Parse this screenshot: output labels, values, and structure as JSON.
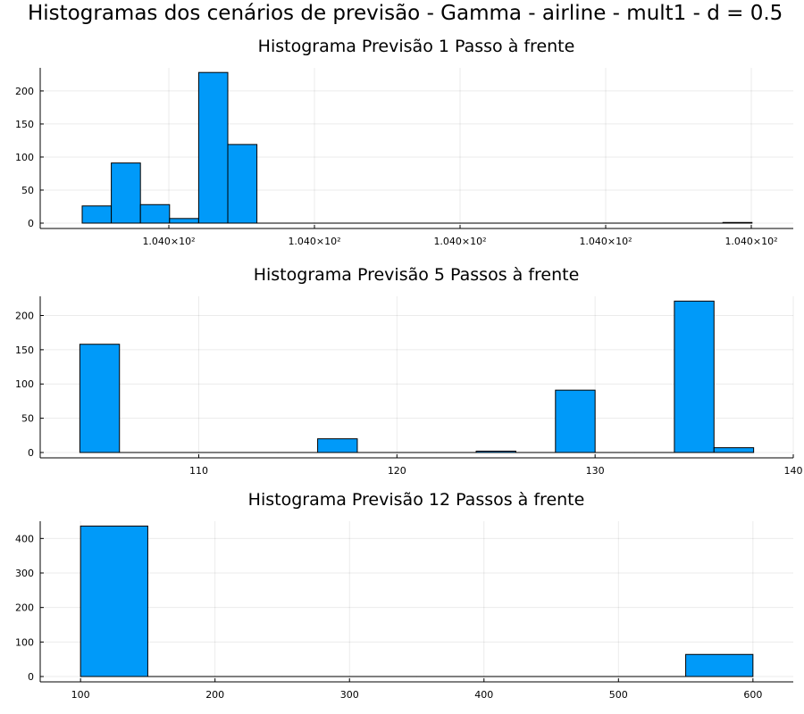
{
  "figure_title": "Histogramas dos cenários de previsão - Gamma - airline - mult1 - d = 0.5",
  "colors": {
    "bar_fill": "#009af9",
    "bar_stroke": "#000000",
    "background": "#ffffff"
  },
  "chart_data": [
    {
      "type": "bar",
      "title": "Histograma Previsão 1 Passo à frente",
      "xlabel": "",
      "ylabel": "",
      "grid": true,
      "legend": "none",
      "x_tick_labels": [
        "1.040×10²",
        "1.040×10²",
        "1.040×10²",
        "1.040×10²",
        "1.040×10²"
      ],
      "y_ticks": [
        0,
        50,
        100,
        150,
        200
      ],
      "ylim": [
        0,
        235
      ],
      "bins": [
        {
          "bin": 1,
          "value": 26
        },
        {
          "bin": 2,
          "value": 91
        },
        {
          "bin": 3,
          "value": 28
        },
        {
          "bin": 4,
          "value": 7
        },
        {
          "bin": 5,
          "value": 228
        },
        {
          "bin": 6,
          "value": 119
        },
        {
          "bin": 7,
          "value": 0
        },
        {
          "bin": 8,
          "value": 0
        },
        {
          "bin": 9,
          "value": 0
        },
        {
          "bin": 10,
          "value": 0
        },
        {
          "bin": 11,
          "value": 0
        },
        {
          "bin": 12,
          "value": 0
        },
        {
          "bin": 13,
          "value": 0
        },
        {
          "bin": 14,
          "value": 0
        },
        {
          "bin": 15,
          "value": 0
        },
        {
          "bin": 16,
          "value": 0
        },
        {
          "bin": 17,
          "value": 0
        },
        {
          "bin": 18,
          "value": 0
        },
        {
          "bin": 19,
          "value": 0
        },
        {
          "bin": 20,
          "value": 0
        },
        {
          "bin": 21,
          "value": 0
        },
        {
          "bin": 22,
          "value": 0
        },
        {
          "bin": 23,
          "value": 1
        }
      ]
    },
    {
      "type": "bar",
      "title": "Histograma Previsão 5 Passos à frente",
      "xlabel": "",
      "ylabel": "",
      "grid": true,
      "legend": "none",
      "xlim": [
        102,
        140
      ],
      "x_ticks": [
        110,
        120,
        130,
        140
      ],
      "y_ticks": [
        0,
        50,
        100,
        150,
        200
      ],
      "ylim": [
        0,
        228
      ],
      "bin_width": 2,
      "bins": [
        {
          "x0": 104,
          "value": 158
        },
        {
          "x0": 106,
          "value": 0
        },
        {
          "x0": 108,
          "value": 0
        },
        {
          "x0": 110,
          "value": 0
        },
        {
          "x0": 112,
          "value": 0
        },
        {
          "x0": 114,
          "value": 0
        },
        {
          "x0": 116,
          "value": 20
        },
        {
          "x0": 118,
          "value": 0
        },
        {
          "x0": 120,
          "value": 0
        },
        {
          "x0": 122,
          "value": 0
        },
        {
          "x0": 124,
          "value": 2
        },
        {
          "x0": 126,
          "value": 0
        },
        {
          "x0": 128,
          "value": 91
        },
        {
          "x0": 130,
          "value": 0
        },
        {
          "x0": 132,
          "value": 0
        },
        {
          "x0": 134,
          "value": 221
        },
        {
          "x0": 136,
          "value": 7
        }
      ]
    },
    {
      "type": "bar",
      "title": "Histograma Previsão 12 Passos à frente",
      "xlabel": "",
      "ylabel": "",
      "grid": true,
      "legend": "none",
      "xlim": [
        70,
        630
      ],
      "x_ticks": [
        100,
        200,
        300,
        400,
        500,
        600
      ],
      "y_ticks": [
        0,
        100,
        200,
        300,
        400
      ],
      "ylim": [
        0,
        450
      ],
      "bin_width": 50,
      "bins": [
        {
          "x0": 100,
          "value": 436
        },
        {
          "x0": 150,
          "value": 0
        },
        {
          "x0": 200,
          "value": 0
        },
        {
          "x0": 250,
          "value": 0
        },
        {
          "x0": 300,
          "value": 0
        },
        {
          "x0": 350,
          "value": 0
        },
        {
          "x0": 400,
          "value": 0
        },
        {
          "x0": 450,
          "value": 0
        },
        {
          "x0": 500,
          "value": 0
        },
        {
          "x0": 550,
          "value": 64
        }
      ]
    }
  ]
}
